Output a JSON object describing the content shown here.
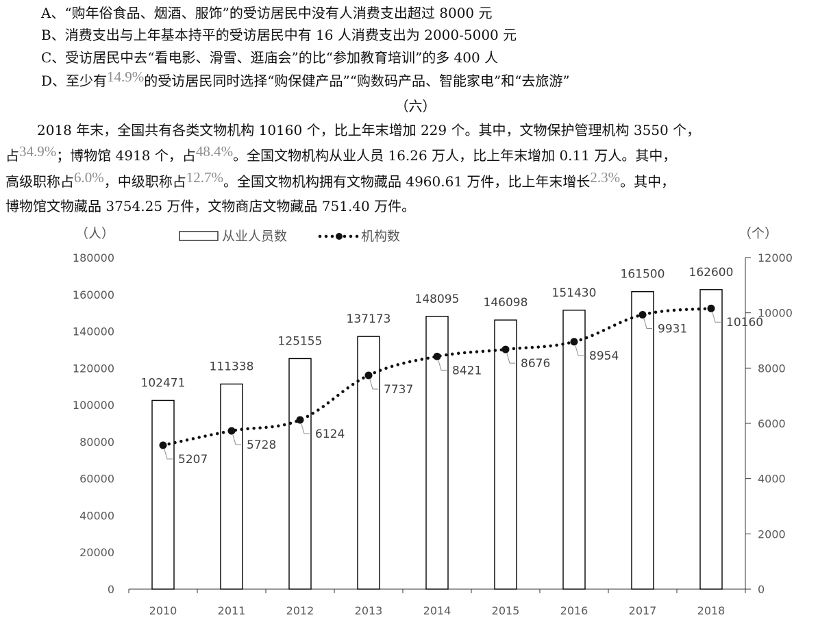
{
  "options": {
    "a": "A、“购年俗食品、烟酒、服饰”的受访居民中没有人消费支出超过 8000 元",
    "b": "B、消费支出与上年基本持平的受访居民中有 16 人消费支出为 2000-5000 元",
    "c": "C、受访居民中去“看电影、滑雪、逛庙会”的比“参加教育培训”的多 400 人",
    "d_prefix": "D、至少有",
    "d_pct": "14.9%",
    "d_suffix": "的受访居民同时选择“购保健产品”“购数码产品、智能家电”和“去旅游”"
  },
  "section": {
    "title": "（六）"
  },
  "paragraph": {
    "l1": "2018 年末，全国共有各类文物机构 10160 个，比上年末增加 229 个。其中，文物保护管理机构 3550 个，",
    "l2_a": "占",
    "l2_pct1": "34.9%",
    "l2_b": "；博物馆 4918 个，占",
    "l2_pct2": "48.4%",
    "l2_c": "。全国文物机构从业人员 16.26 万人，比上年末增加 0.11 万人。其中，",
    "l3_a": "高级职称占",
    "l3_pct1": "6.0%",
    "l3_b": "，中级职称占",
    "l3_pct2": "12.7%",
    "l3_c": "。全国文物机构拥有文物藏品 4960.61 万件，比上年末增长",
    "l3_pct3": "2.3%",
    "l3_d": "。其中，",
    "l4": "博物馆文物藏品 3754.25 万件，文物商店文物藏品 751.40 万件。"
  },
  "chart_data": {
    "type": "bar",
    "categories": [
      "2010",
      "2011",
      "2012",
      "2013",
      "2014",
      "2015",
      "2016",
      "2017",
      "2018"
    ],
    "series": [
      {
        "name": "从业人员数",
        "type": "bar",
        "axis": "left",
        "values": [
          102471,
          111338,
          125155,
          137173,
          148095,
          146098,
          151430,
          161500,
          162600
        ]
      },
      {
        "name": "机构数",
        "type": "line",
        "axis": "right",
        "values": [
          5207,
          5728,
          6124,
          7737,
          8421,
          8676,
          8954,
          9931,
          10160
        ]
      }
    ],
    "left_unit": "（人）",
    "right_unit": "（个）",
    "ylim_left": [
      0,
      180000
    ],
    "ylim_right": [
      0,
      12000
    ],
    "yticks_left": [
      "0",
      "20000",
      "40000",
      "60000",
      "80000",
      "100000",
      "120000",
      "140000",
      "160000",
      "180000"
    ],
    "yticks_right": [
      "0",
      "2000",
      "4000",
      "6000",
      "8000",
      "10000",
      "12000"
    ],
    "legend_position": "top",
    "grid": false,
    "colors": {
      "bar_fill": "#ffffff",
      "bar_stroke": "#000000",
      "line": "#111111",
      "axis_text": "#595959"
    }
  }
}
